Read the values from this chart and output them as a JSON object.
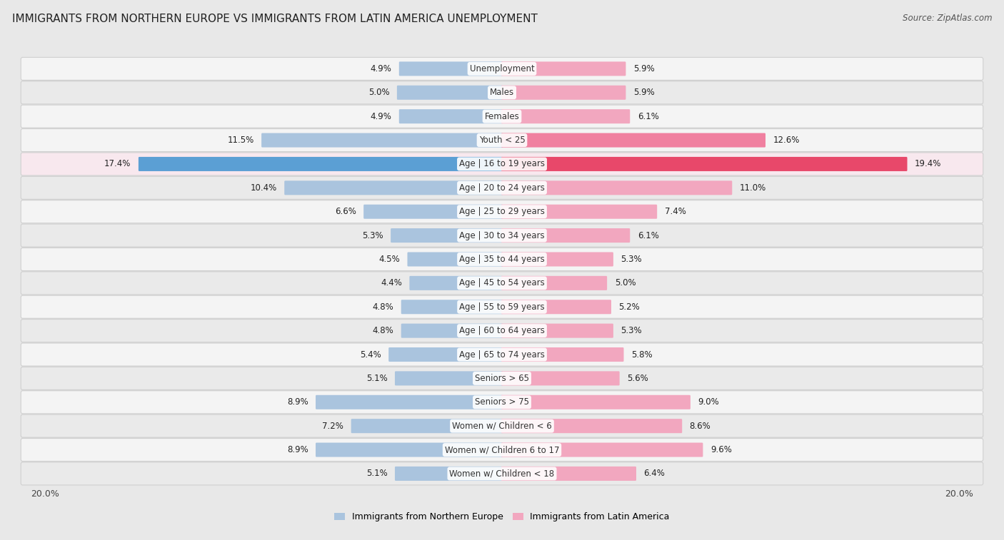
{
  "title": "IMMIGRANTS FROM NORTHERN EUROPE VS IMMIGRANTS FROM LATIN AMERICA UNEMPLOYMENT",
  "source": "Source: ZipAtlas.com",
  "categories": [
    "Unemployment",
    "Males",
    "Females",
    "Youth < 25",
    "Age | 16 to 19 years",
    "Age | 20 to 24 years",
    "Age | 25 to 29 years",
    "Age | 30 to 34 years",
    "Age | 35 to 44 years",
    "Age | 45 to 54 years",
    "Age | 55 to 59 years",
    "Age | 60 to 64 years",
    "Age | 65 to 74 years",
    "Seniors > 65",
    "Seniors > 75",
    "Women w/ Children < 6",
    "Women w/ Children 6 to 17",
    "Women w/ Children < 18"
  ],
  "left_values": [
    4.9,
    5.0,
    4.9,
    11.5,
    17.4,
    10.4,
    6.6,
    5.3,
    4.5,
    4.4,
    4.8,
    4.8,
    5.4,
    5.1,
    8.9,
    7.2,
    8.9,
    5.1
  ],
  "right_values": [
    5.9,
    5.9,
    6.1,
    12.6,
    19.4,
    11.0,
    7.4,
    6.1,
    5.3,
    5.0,
    5.2,
    5.3,
    5.8,
    5.6,
    9.0,
    8.6,
    9.6,
    6.4
  ],
  "left_color_normal": "#aac4de",
  "right_color_normal": "#f2a7bf",
  "left_color_highlight3": "#aac4de",
  "right_color_highlight3": "#f080a0",
  "left_color_highlight4": "#5b9fd4",
  "right_color_highlight4": "#e8486a",
  "row_bg_normal_odd": "#f4f4f4",
  "row_bg_normal_even": "#eaeaea",
  "row_bg_highlight3": "#f4f4f4",
  "row_bg_highlight4": "#f8e8ee",
  "bg_color": "#e8e8e8",
  "axis_max": 20.0,
  "left_legend": "Immigrants from Northern Europe",
  "right_legend": "Immigrants from Latin America",
  "title_fontsize": 11,
  "source_fontsize": 8.5,
  "label_fontsize": 8.5,
  "value_fontsize": 8.5,
  "legend_fontsize": 9
}
